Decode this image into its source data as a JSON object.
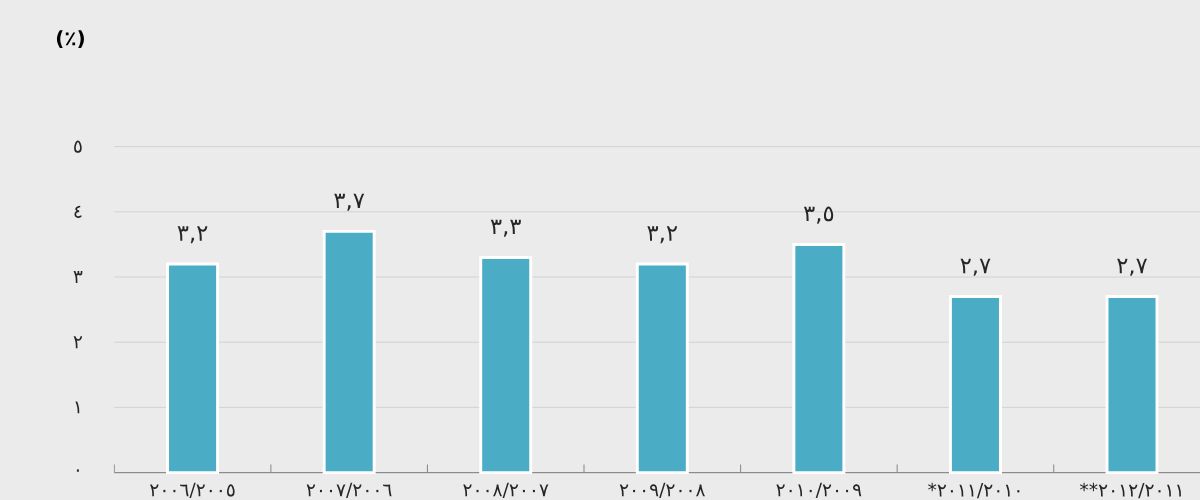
{
  "chart_data": {
    "type": "bar",
    "ylabel": "(٪)",
    "categories": [
      "٢٠٠٦/٢٠٠٥",
      "٢٠٠٧/٢٠٠٦",
      "٢٠٠٨/٢٠٠٧",
      "٢٠٠٩/٢٠٠٨",
      "٢٠١٠/٢٠٠٩",
      "*٢٠١١/٢٠١٠",
      "**٢٠١٢/٢٠١١"
    ],
    "values": [
      3.2,
      3.7,
      3.3,
      3.2,
      3.5,
      2.7,
      2.7
    ],
    "value_labels": [
      "٣,٢",
      "٣,٧",
      "٣,٣",
      "٣,٢",
      "٣,٥",
      "٢,٧",
      "٢,٧"
    ],
    "color": "#4bacc6",
    "ylim": [
      0,
      5
    ],
    "yticks": [
      {
        "value": 0,
        "label": "٠"
      },
      {
        "value": 1,
        "label": "١"
      },
      {
        "value": 2,
        "label": "٢"
      },
      {
        "value": 3,
        "label": "٣"
      },
      {
        "value": 4,
        "label": "٤"
      },
      {
        "value": 5,
        "label": "٥"
      }
    ],
    "grid": "y"
  }
}
